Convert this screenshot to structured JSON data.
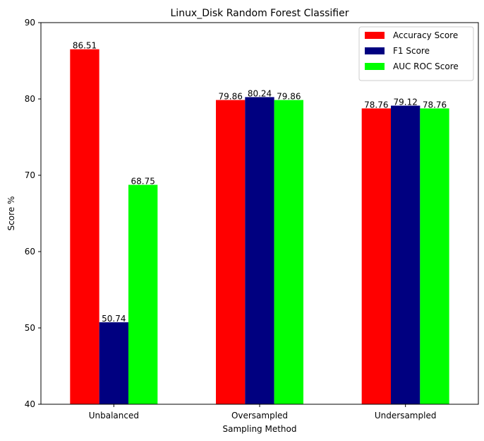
{
  "chart_data": {
    "type": "bar",
    "title": "Linux_Disk Random Forest Classifier",
    "xlabel": "Sampling Method",
    "ylabel": "Score %",
    "ylim": [
      40,
      90
    ],
    "yticks": [
      40,
      50,
      60,
      70,
      80,
      90
    ],
    "categories": [
      "Unbalanced",
      "Oversampled",
      "Undersampled"
    ],
    "series": [
      {
        "name": "Accuracy Score",
        "color": "#ff0000",
        "values": [
          86.51,
          79.86,
          78.76
        ]
      },
      {
        "name": "F1 Score",
        "color": "#000080",
        "values": [
          50.74,
          80.24,
          79.12
        ]
      },
      {
        "name": "AUC ROC Score",
        "color": "#00ff00",
        "values": [
          68.75,
          79.86,
          78.76
        ]
      }
    ],
    "grid": false,
    "legend_position": "top-right"
  }
}
